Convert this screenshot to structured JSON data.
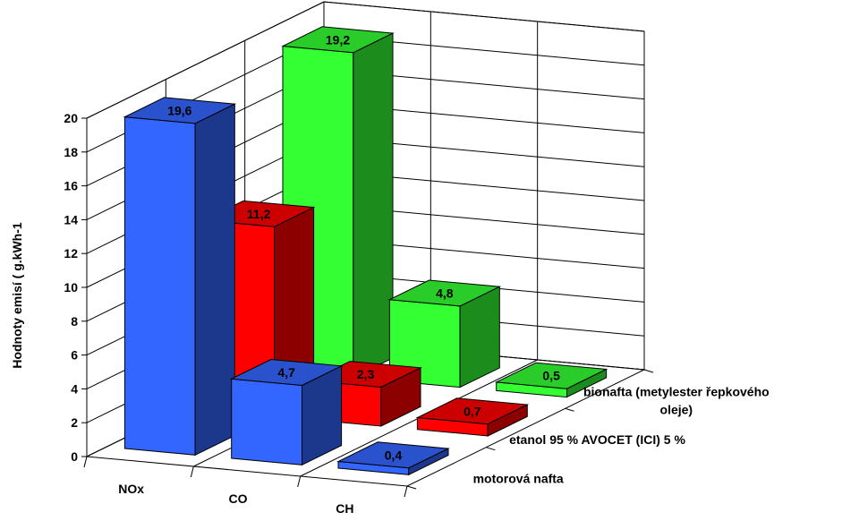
{
  "chart_data": {
    "type": "bar",
    "variant": "3d-column",
    "categories": [
      "NOx",
      "CO",
      "CH"
    ],
    "series": [
      {
        "name": "motorová nafta",
        "values": [
          19.6,
          4.7,
          0.4
        ],
        "value_labels": [
          "19,6",
          "4,7",
          "0,4"
        ],
        "color": "#3366ff"
      },
      {
        "name": "etanol 95 %  AVOCET (ICI) 5 %",
        "values": [
          11.2,
          2.3,
          0.7
        ],
        "value_labels": [
          "11,2",
          "2,3",
          "0,7"
        ],
        "color": "#ff0000"
      },
      {
        "name": "bionafta  (metylester řepkového oleje)",
        "values": [
          19.2,
          4.8,
          0.5
        ],
        "value_labels": [
          "19,2",
          "4,8",
          "0,5"
        ],
        "color": "#33ff33"
      }
    ],
    "series_label_lines": [
      [
        "motorová nafta"
      ],
      [
        "etanol 95 %  AVOCET (ICI) 5 %"
      ],
      [
        "bionafta  (metylester řepkového",
        "oleje)"
      ]
    ],
    "ylabel": "Hodnoty emisí ( g.kWh-1",
    "ylim": [
      0,
      20
    ],
    "yticks": [
      0,
      2,
      4,
      6,
      8,
      10,
      12,
      14,
      16,
      18,
      20
    ],
    "grid": true,
    "title": ""
  }
}
